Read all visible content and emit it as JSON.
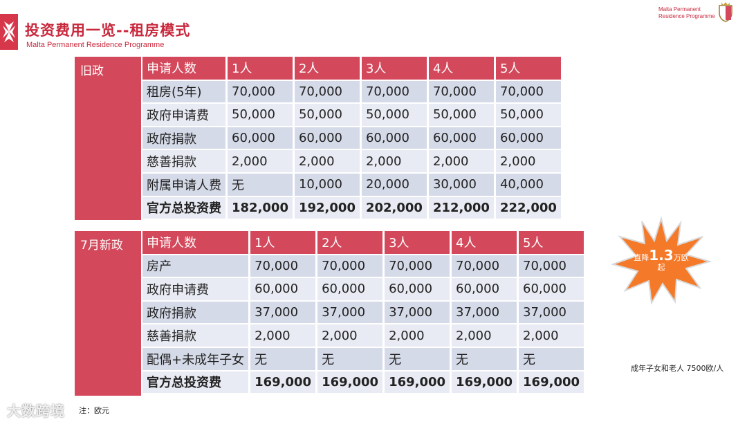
{
  "header": {
    "title": "投资费用一览--租房模式",
    "subtitle": "Malta Permanent Residence Programme",
    "brand_line1": "Malta Permanent",
    "brand_line2": "Residence Programme",
    "logo_icon": "maltese-cross-icon",
    "crest_icon": "malta-coat-of-arms-icon"
  },
  "colors": {
    "accent_red": "#d3485b",
    "title_red": "#c8283c",
    "row_dark": "#d5dae8",
    "row_light": "#e8ebf3",
    "burst_orange": "#f47a2a"
  },
  "old_policy": {
    "label": "旧政",
    "header": [
      "申请人数",
      "1人",
      "2人",
      "3人",
      "4人",
      "5人"
    ],
    "rows": [
      [
        "租房(5年)",
        "70,000",
        "70,000",
        "70,000",
        "70,000",
        "70,000"
      ],
      [
        "政府申请费",
        "50,000",
        "50,000",
        "50,000",
        "50,000",
        "50,000"
      ],
      [
        "政府捐款",
        "60,000",
        "60,000",
        "60,000",
        "60,000",
        "60,000"
      ],
      [
        "慈善捐款",
        "2,000",
        "2,000",
        "2,000",
        "2,000",
        "2,000"
      ],
      [
        "附属申请人费",
        "无",
        "10,000",
        "20,000",
        "30,000",
        "40,000"
      ],
      [
        "官方总投资费",
        "182,000",
        "192,000",
        "202,000",
        "212,000",
        "222,000"
      ]
    ]
  },
  "new_policy": {
    "label": "7月新政",
    "header": [
      "申请人数",
      "1人",
      "2人",
      "3人",
      "4人",
      "5人"
    ],
    "rows": [
      [
        "房产",
        "70,000",
        "70,000",
        "70,000",
        "70,000",
        "70,000"
      ],
      [
        "政府申请费",
        "60,000",
        "60,000",
        "60,000",
        "60,000",
        "60,000"
      ],
      [
        "政府捐款",
        "37,000",
        "37,000",
        "37,000",
        "37,000",
        "37,000"
      ],
      [
        "慈善捐款",
        "2,000",
        "2,000",
        "2,000",
        "2,000",
        "2,000"
      ],
      [
        "配偶+未成年子女",
        "无",
        "无",
        "无",
        "无",
        "无"
      ],
      [
        "官方总投资费",
        "169,000",
        "169,000",
        "169,000",
        "169,000",
        "169,000"
      ]
    ]
  },
  "burst": {
    "prefix": "直降",
    "amount": "1.3",
    "suffix": "万欧",
    "line2": "起"
  },
  "notes": {
    "right": "成年子女和老人 7500欧/人",
    "bottom": "注：欧元"
  },
  "watermark": "大数跨境"
}
